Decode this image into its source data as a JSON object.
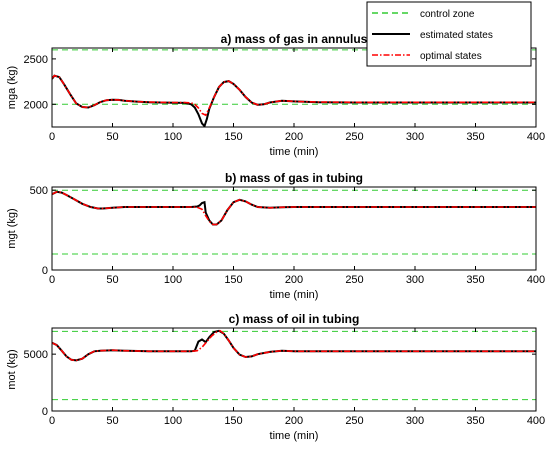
{
  "chart_data": [
    {
      "type": "line",
      "title": "a)   mass of gas in annulus",
      "xlabel": "time (min)",
      "ylabel": "mga (kg)",
      "xlim": [
        0,
        400
      ],
      "ylim": [
        1750,
        2620
      ],
      "xticks": [
        0,
        50,
        100,
        150,
        200,
        250,
        300,
        350,
        400
      ],
      "yticks": [
        2000,
        2500
      ],
      "control_zone": [
        2000,
        2600
      ],
      "series": [
        {
          "name": "estimated states",
          "color": "#000000",
          "style": "solid",
          "points": [
            [
              0,
              2280
            ],
            [
              2,
              2315
            ],
            [
              6,
              2300
            ],
            [
              10,
              2220
            ],
            [
              15,
              2110
            ],
            [
              20,
              2010
            ],
            [
              25,
              1970
            ],
            [
              30,
              1965
            ],
            [
              35,
              1990
            ],
            [
              40,
              2025
            ],
            [
              45,
              2045
            ],
            [
              50,
              2050
            ],
            [
              55,
              2048
            ],
            [
              60,
              2040
            ],
            [
              70,
              2030
            ],
            [
              80,
              2022
            ],
            [
              90,
              2020
            ],
            [
              100,
              2018
            ],
            [
              110,
              2015
            ],
            [
              115,
              2000
            ],
            [
              118,
              1965
            ],
            [
              121,
              1890
            ],
            [
              124,
              1790
            ],
            [
              126,
              1760
            ],
            [
              128,
              1840
            ],
            [
              130,
              1950
            ],
            [
              134,
              2080
            ],
            [
              138,
              2190
            ],
            [
              142,
              2245
            ],
            [
              146,
              2255
            ],
            [
              150,
              2225
            ],
            [
              155,
              2160
            ],
            [
              160,
              2080
            ],
            [
              165,
              2020
            ],
            [
              170,
              1995
            ],
            [
              175,
              2000
            ],
            [
              180,
              2020
            ],
            [
              190,
              2040
            ],
            [
              200,
              2032
            ],
            [
              220,
              2022
            ],
            [
              250,
              2020
            ],
            [
              300,
              2020
            ],
            [
              350,
              2020
            ],
            [
              400,
              2020
            ]
          ]
        },
        {
          "name": "optimal states",
          "color": "#ff0000",
          "style": "dashdot",
          "points": [
            [
              0,
              2290
            ],
            [
              2,
              2315
            ],
            [
              6,
              2300
            ],
            [
              10,
              2220
            ],
            [
              15,
              2110
            ],
            [
              20,
              2010
            ],
            [
              25,
              1970
            ],
            [
              30,
              1965
            ],
            [
              35,
              1990
            ],
            [
              40,
              2025
            ],
            [
              45,
              2045
            ],
            [
              50,
              2050
            ],
            [
              55,
              2048
            ],
            [
              60,
              2040
            ],
            [
              70,
              2030
            ],
            [
              80,
              2025
            ],
            [
              90,
              2022
            ],
            [
              100,
              2020
            ],
            [
              110,
              2020
            ],
            [
              115,
              2015
            ],
            [
              118,
              2000
            ],
            [
              121,
              1960
            ],
            [
              124,
              1900
            ],
            [
              127,
              1880
            ],
            [
              130,
              1960
            ],
            [
              134,
              2080
            ],
            [
              138,
              2190
            ],
            [
              142,
              2245
            ],
            [
              146,
              2255
            ],
            [
              150,
              2225
            ],
            [
              155,
              2160
            ],
            [
              160,
              2080
            ],
            [
              165,
              2020
            ],
            [
              170,
              1995
            ],
            [
              175,
              2000
            ],
            [
              180,
              2020
            ],
            [
              190,
              2040
            ],
            [
              200,
              2032
            ],
            [
              220,
              2025
            ],
            [
              250,
              2022
            ],
            [
              300,
              2022
            ],
            [
              350,
              2022
            ],
            [
              400,
              2022
            ]
          ]
        }
      ]
    },
    {
      "type": "line",
      "title": "b)   mass of gas in tubing",
      "xlabel": "time (min)",
      "ylabel": "mgt (kg)",
      "xlim": [
        0,
        400
      ],
      "ylim": [
        0,
        520
      ],
      "xticks": [
        0,
        50,
        100,
        150,
        200,
        250,
        300,
        350,
        400
      ],
      "yticks": [
        0,
        500
      ],
      "control_zone": [
        100,
        500
      ],
      "series": [
        {
          "name": "estimated states",
          "color": "#000000",
          "style": "solid",
          "points": [
            [
              0,
              475
            ],
            [
              4,
              490
            ],
            [
              8,
              485
            ],
            [
              12,
              470
            ],
            [
              18,
              445
            ],
            [
              25,
              415
            ],
            [
              32,
              395
            ],
            [
              38,
              385
            ],
            [
              42,
              385
            ],
            [
              50,
              390
            ],
            [
              60,
              395
            ],
            [
              80,
              395
            ],
            [
              100,
              395
            ],
            [
              115,
              395
            ],
            [
              120,
              398
            ],
            [
              122,
              405
            ],
            [
              124,
              420
            ],
            [
              126,
              425
            ],
            [
              127,
              360
            ],
            [
              130,
              310
            ],
            [
              133,
              285
            ],
            [
              136,
              285
            ],
            [
              140,
              310
            ],
            [
              145,
              375
            ],
            [
              150,
              425
            ],
            [
              155,
              440
            ],
            [
              160,
              430
            ],
            [
              165,
              410
            ],
            [
              170,
              395
            ],
            [
              180,
              390
            ],
            [
              190,
              393
            ],
            [
              200,
              395
            ],
            [
              250,
              395
            ],
            [
              300,
              395
            ],
            [
              350,
              395
            ],
            [
              400,
              395
            ]
          ]
        },
        {
          "name": "optimal states",
          "color": "#ff0000",
          "style": "dashdot",
          "points": [
            [
              0,
              475
            ],
            [
              4,
              490
            ],
            [
              8,
              485
            ],
            [
              12,
              470
            ],
            [
              18,
              445
            ],
            [
              25,
              415
            ],
            [
              32,
              395
            ],
            [
              38,
              385
            ],
            [
              42,
              385
            ],
            [
              50,
              390
            ],
            [
              60,
              395
            ],
            [
              80,
              395
            ],
            [
              100,
              395
            ],
            [
              115,
              395
            ],
            [
              120,
              393
            ],
            [
              124,
              380
            ],
            [
              127,
              340
            ],
            [
              130,
              305
            ],
            [
              133,
              285
            ],
            [
              136,
              285
            ],
            [
              140,
              310
            ],
            [
              145,
              375
            ],
            [
              150,
              425
            ],
            [
              155,
              440
            ],
            [
              160,
              430
            ],
            [
              165,
              410
            ],
            [
              170,
              395
            ],
            [
              180,
              390
            ],
            [
              190,
              393
            ],
            [
              200,
              395
            ],
            [
              250,
              395
            ],
            [
              300,
              395
            ],
            [
              350,
              395
            ],
            [
              400,
              395
            ]
          ]
        }
      ]
    },
    {
      "type": "line",
      "title": "c)   mass of oil in tubing",
      "xlabel": "time (min)",
      "ylabel": "mot (kg)",
      "xlim": [
        0,
        400
      ],
      "ylim": [
        0,
        7300
      ],
      "xticks": [
        0,
        50,
        100,
        150,
        200,
        250,
        300,
        350,
        400
      ],
      "yticks": [
        0,
        5000
      ],
      "control_zone": [
        1000,
        7000
      ],
      "series": [
        {
          "name": "estimated states",
          "color": "#000000",
          "style": "solid",
          "points": [
            [
              0,
              6000
            ],
            [
              4,
              5800
            ],
            [
              8,
              5300
            ],
            [
              12,
              4800
            ],
            [
              16,
              4500
            ],
            [
              20,
              4450
            ],
            [
              25,
              4600
            ],
            [
              30,
              5000
            ],
            [
              35,
              5250
            ],
            [
              40,
              5300
            ],
            [
              50,
              5350
            ],
            [
              60,
              5300
            ],
            [
              80,
              5250
            ],
            [
              100,
              5250
            ],
            [
              115,
              5250
            ],
            [
              118,
              5300
            ],
            [
              121,
              6100
            ],
            [
              124,
              6300
            ],
            [
              127,
              6050
            ],
            [
              130,
              6500
            ],
            [
              134,
              6950
            ],
            [
              138,
              7050
            ],
            [
              142,
              6800
            ],
            [
              146,
              6200
            ],
            [
              150,
              5550
            ],
            [
              155,
              4950
            ],
            [
              160,
              4750
            ],
            [
              165,
              4800
            ],
            [
              170,
              5000
            ],
            [
              180,
              5200
            ],
            [
              190,
              5300
            ],
            [
              200,
              5250
            ],
            [
              250,
              5250
            ],
            [
              300,
              5250
            ],
            [
              350,
              5250
            ],
            [
              400,
              5250
            ]
          ]
        },
        {
          "name": "optimal states",
          "color": "#ff0000",
          "style": "dashdot",
          "points": [
            [
              0,
              6000
            ],
            [
              4,
              5800
            ],
            [
              8,
              5300
            ],
            [
              12,
              4800
            ],
            [
              16,
              4500
            ],
            [
              20,
              4450
            ],
            [
              25,
              4600
            ],
            [
              30,
              5000
            ],
            [
              35,
              5250
            ],
            [
              40,
              5300
            ],
            [
              50,
              5350
            ],
            [
              60,
              5300
            ],
            [
              80,
              5250
            ],
            [
              100,
              5250
            ],
            [
              115,
              5250
            ],
            [
              120,
              5300
            ],
            [
              124,
              5600
            ],
            [
              128,
              6100
            ],
            [
              132,
              6600
            ],
            [
              136,
              6950
            ],
            [
              139,
              7050
            ],
            [
              142,
              6800
            ],
            [
              146,
              6200
            ],
            [
              150,
              5550
            ],
            [
              155,
              4950
            ],
            [
              160,
              4750
            ],
            [
              165,
              4800
            ],
            [
              170,
              5000
            ],
            [
              180,
              5200
            ],
            [
              190,
              5300
            ],
            [
              200,
              5250
            ],
            [
              250,
              5250
            ],
            [
              300,
              5250
            ],
            [
              350,
              5250
            ],
            [
              400,
              5250
            ]
          ]
        }
      ]
    }
  ],
  "legend": {
    "position": "top-right",
    "items": [
      {
        "label": "control zone",
        "color": "#33cc33",
        "style": "dashed"
      },
      {
        "label": "estimated states",
        "color": "#000000",
        "style": "solid"
      },
      {
        "label": "optimal states",
        "color": "#ff0000",
        "style": "dashdot"
      }
    ]
  }
}
